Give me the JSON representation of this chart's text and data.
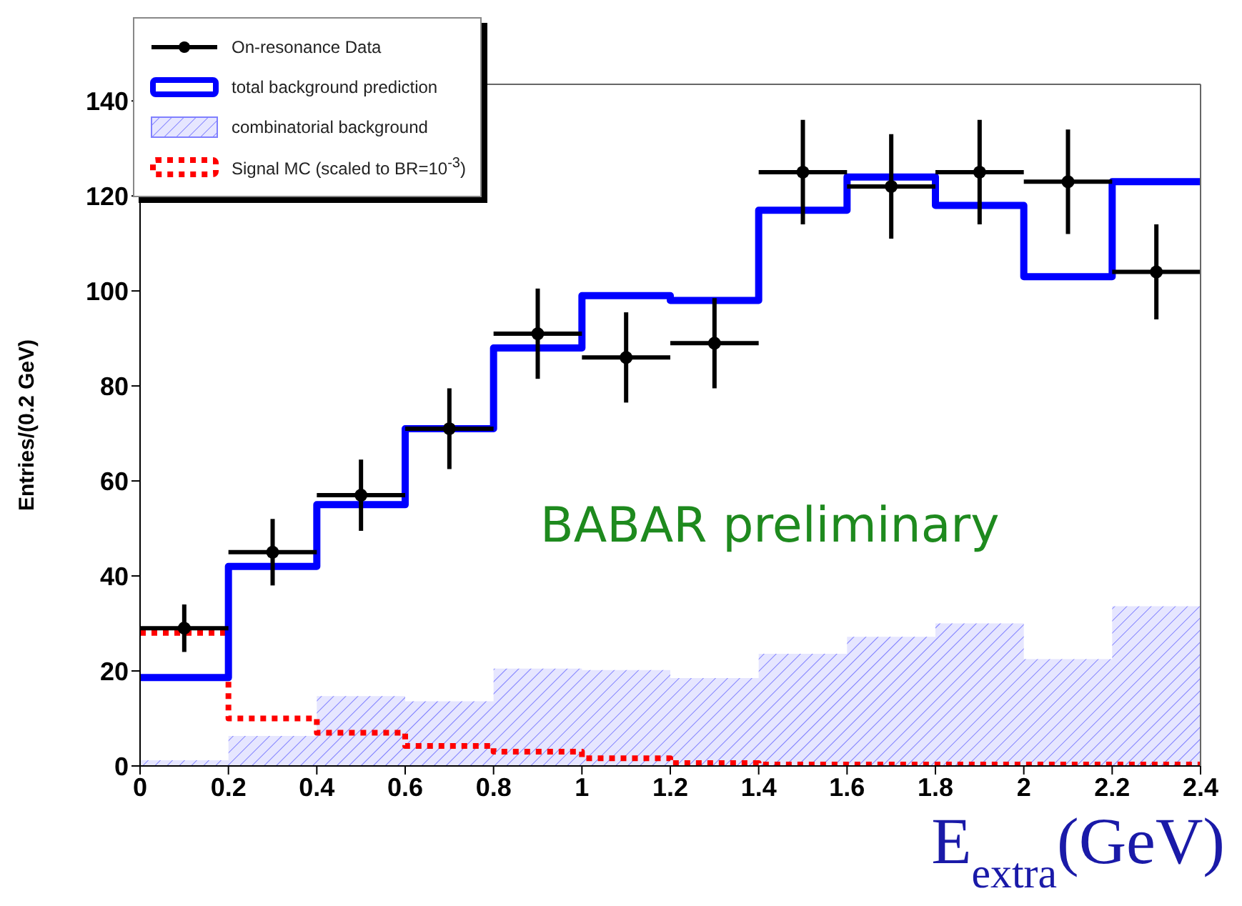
{
  "chart_data": {
    "type": "histogram",
    "xlabel": "E$_{extra}$(GeV)",
    "ylabel": "Entries/(0.2 GeV)",
    "bins": [
      0,
      0.2,
      0.4,
      0.6,
      0.8,
      1,
      1.2,
      1.4,
      1.6,
      1.8,
      2,
      2.2,
      2.4
    ],
    "series": [
      {
        "name": "On-resonance Data",
        "type": "scatter",
        "color": "#000000",
        "x": [
          0.1,
          0.3,
          0.5,
          0.7,
          0.9,
          1.1,
          1.3,
          1.5,
          1.7,
          1.9,
          2.1,
          2.3
        ],
        "values": [
          29,
          45,
          57,
          71,
          91,
          86,
          89,
          125,
          122,
          125,
          123,
          104
        ],
        "errors": [
          5,
          7,
          7.5,
          8.5,
          9.5,
          9.5,
          9.5,
          11,
          11,
          11,
          11,
          10
        ],
        "xerrors": [
          0.1,
          0.1,
          0.1,
          0.1,
          0.1,
          0.1,
          0.1,
          0.1,
          0.1,
          0.1,
          0.1,
          0.1
        ],
        "marker": "circle"
      },
      {
        "name": "total background prediction",
        "type": "histogram",
        "color": "#0000ff",
        "values": [
          18.6,
          42,
          55,
          71,
          88,
          99,
          98,
          117,
          124,
          118,
          103,
          123
        ]
      },
      {
        "name": "combinatorial background",
        "type": "area",
        "color": "#8080ff",
        "x": [
          0,
          0.2,
          0.2,
          0.4,
          0.4,
          0.6,
          0.6,
          0.8,
          0.8,
          1,
          1,
          1.2,
          1.2,
          1.4,
          1.4,
          1.6,
          1.6,
          1.8,
          1.8,
          2,
          2,
          2.2,
          2.2,
          2.4
        ],
        "values": [
          1.2,
          1.2,
          6.3,
          6.3,
          14.7,
          14.7,
          13.6,
          13.6,
          20.5,
          20.5,
          20.2,
          20.2,
          18.5,
          18.5,
          23.6,
          23.6,
          27.2,
          27.2,
          30,
          30,
          22.5,
          22.5,
          33.6,
          33.6
        ]
      },
      {
        "name": "Signal MC (scaled to BR=10$^{-3}$)",
        "type": "histogram",
        "color": "#ff0000",
        "line_style": "dotted",
        "values": [
          28,
          10,
          7,
          4.2,
          3,
          1.6,
          0.6,
          0.3,
          0.3,
          0.3,
          0.3,
          0.3
        ]
      }
    ],
    "xlim": [
      0,
      2.4
    ],
    "xticks": [
      0,
      0.2,
      0.4,
      0.6,
      0.8,
      1,
      1.2,
      1.4,
      1.6,
      1.8,
      2,
      2.2,
      2.4
    ],
    "ylim": [
      0,
      143.5
    ],
    "yticks": [
      0,
      20,
      40,
      60,
      80,
      100,
      120,
      140
    ],
    "legend": "top left",
    "annotations": [
      "BABAR preliminary"
    ]
  }
}
